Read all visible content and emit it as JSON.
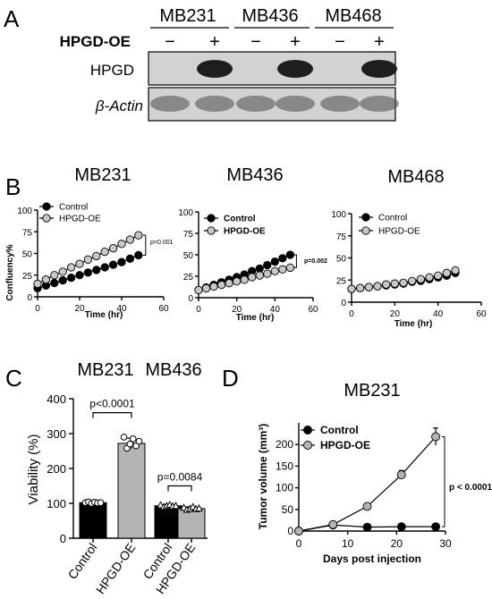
{
  "panel_letters": {
    "a": "A",
    "b": "B",
    "c": "C",
    "d": "D"
  },
  "panel_a": {
    "cell_lines": [
      "MB231",
      "MB436",
      "MB468"
    ],
    "row_label": "HPGD-OE",
    "lane_signs": [
      "−",
      "+",
      "−",
      "+",
      "−",
      "+"
    ],
    "blot_labels": {
      "hpgd": "HPGD",
      "actin": "β-Actin"
    },
    "hpgd_band_present": [
      false,
      true,
      false,
      true,
      false,
      true
    ],
    "colors": {
      "blot_bg": "#d2d2d2",
      "band": "#1e1e1e",
      "actin_band": "#4a4a4a"
    }
  },
  "chart_data": [
    {
      "id": "b1",
      "type": "line",
      "title": "MB231",
      "xlabel": "Time (hr)",
      "ylabel": "Confluency%",
      "xlim": [
        0,
        60
      ],
      "ylim": [
        0,
        100
      ],
      "xticks": [
        0,
        20,
        40,
        60
      ],
      "yticks": [
        0,
        25,
        50,
        75,
        100
      ],
      "x": [
        0,
        4,
        8,
        12,
        16,
        20,
        24,
        28,
        32,
        36,
        40,
        44,
        48
      ],
      "series": [
        {
          "name": "Control",
          "color": "#000000",
          "values": [
            10,
            13,
            16,
            19,
            22,
            25,
            28,
            31,
            34,
            37,
            40,
            44,
            48
          ]
        },
        {
          "name": "HPGD-OE",
          "color": "#c8c8c8",
          "values": [
            15,
            20,
            25,
            29,
            34,
            38,
            43,
            47,
            52,
            56,
            61,
            66,
            71
          ]
        }
      ],
      "pvalue": "p=0.001",
      "legend": "top-left"
    },
    {
      "id": "b2",
      "type": "line",
      "title": "MB436",
      "xlabel": "Time (hr)",
      "ylabel": "",
      "xlim": [
        0,
        60
      ],
      "ylim": [
        0,
        100
      ],
      "xticks": [
        0,
        20,
        40,
        60
      ],
      "yticks": [
        0,
        25,
        50,
        75,
        100
      ],
      "x": [
        0,
        4,
        8,
        12,
        16,
        20,
        24,
        28,
        32,
        36,
        40,
        44,
        48
      ],
      "series": [
        {
          "name": "Control",
          "color": "#000000",
          "values": [
            9,
            12,
            15,
            18,
            21,
            24,
            27,
            31,
            34,
            38,
            42,
            46,
            50
          ]
        },
        {
          "name": "HPGD-OE",
          "color": "#c8c8c8",
          "values": [
            9,
            11,
            13,
            15,
            17,
            19,
            21,
            24,
            26,
            28,
            31,
            33,
            35
          ]
        }
      ],
      "pvalue": "p=0.002",
      "legend": "top-left"
    },
    {
      "id": "b3",
      "type": "line",
      "title": "MB468",
      "xlabel": "Time (hr)",
      "ylabel": "",
      "xlim": [
        0,
        60
      ],
      "ylim": [
        0,
        100
      ],
      "xticks": [
        0,
        20,
        40,
        60
      ],
      "yticks": [
        0,
        25,
        50,
        75,
        100
      ],
      "x": [
        0,
        4,
        8,
        12,
        16,
        20,
        24,
        28,
        32,
        36,
        40,
        44,
        48
      ],
      "series": [
        {
          "name": "Control",
          "color": "#000000",
          "values": [
            15,
            16,
            17,
            18,
            19,
            20,
            21,
            23,
            24,
            26,
            28,
            30,
            33
          ]
        },
        {
          "name": "HPGD-OE",
          "color": "#c8c8c8",
          "values": [
            15,
            16,
            17,
            18,
            20,
            21,
            22,
            24,
            26,
            28,
            30,
            33,
            36
          ]
        }
      ],
      "pvalue": "",
      "legend": "top-left"
    },
    {
      "id": "c",
      "type": "bar",
      "group_titles": [
        "MB231",
        "MB436"
      ],
      "categories": [
        "Control",
        "HPGD-OE",
        "Control",
        "HPGD-OE"
      ],
      "values": [
        102,
        272,
        93,
        85
      ],
      "errors": [
        3,
        15,
        4,
        5
      ],
      "bar_colors": [
        "#000000",
        "#b4b4b4",
        "#000000",
        "#b4b4b4"
      ],
      "points": [
        [
          102,
          104,
          100,
          103,
          101,
          102
        ],
        [
          290,
          258,
          270,
          285,
          265,
          278
        ],
        [
          95,
          90,
          93,
          96,
          92,
          93
        ],
        [
          88,
          82,
          85,
          90,
          84,
          86
        ]
      ],
      "ylabel": "Viability (%)",
      "ylim": [
        0,
        400
      ],
      "yticks": [
        0,
        100,
        200,
        300,
        400
      ],
      "annotations": [
        {
          "text": "p<0.0001",
          "between": [
            0,
            1
          ]
        },
        {
          "text": "p=0.0084",
          "between": [
            2,
            3
          ]
        }
      ]
    },
    {
      "id": "d",
      "type": "line",
      "title": "MB231",
      "xlabel": "Days post injection",
      "ylabel": "Tumor volume (mm³)",
      "xlim": [
        0,
        30
      ],
      "ylim": [
        0,
        250
      ],
      "xticks": [
        0,
        10,
        20,
        30
      ],
      "yticks": [
        0,
        50,
        100,
        150,
        200
      ],
      "x": [
        0,
        7,
        14,
        21,
        28
      ],
      "series": [
        {
          "name": "Control",
          "color": "#000000",
          "values": [
            0,
            14,
            9,
            10,
            10
          ],
          "errors": [
            0,
            2,
            2,
            2,
            2
          ]
        },
        {
          "name": "HPGD-OE",
          "color": "#b4b4b4",
          "values": [
            0,
            15,
            57,
            130,
            218
          ],
          "errors": [
            0,
            2,
            5,
            10,
            20
          ]
        }
      ],
      "pvalue": "p < 0.0001",
      "legend": "top-left"
    }
  ]
}
